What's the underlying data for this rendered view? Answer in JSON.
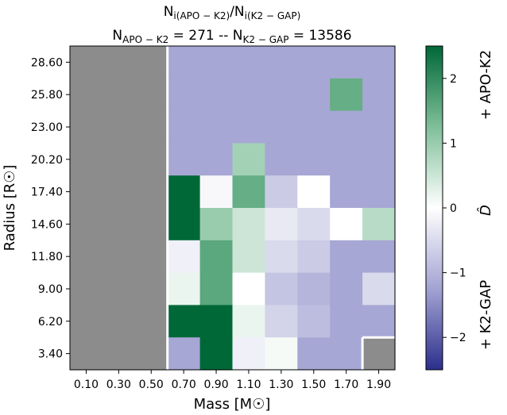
{
  "chart_data": {
    "type": "heatmap",
    "title_line1": "N_i(APO - K2)/N_i(K2 - GAP)",
    "title_line2": "N_APO - K2 = 271 -- N_K2 - GAP = 13586",
    "title": {
      "l1": [
        {
          "t": "N",
          "sub": false
        },
        {
          "t": "i(APO − K2)",
          "sub": true
        },
        {
          "t": "/N",
          "sub": false
        },
        {
          "t": "i(K2 − GAP)",
          "sub": true
        }
      ],
      "l2": [
        {
          "t": "N",
          "sub": false
        },
        {
          "t": "APO − K2",
          "sub": true
        },
        {
          "t": " = 271 -- N",
          "sub": false
        },
        {
          "t": "K2 − GAP",
          "sub": true
        },
        {
          "t": " = 13586",
          "sub": false
        }
      ]
    },
    "xlabel": "Mass [M☉]",
    "ylabel": "Radius [R☉]",
    "x_ticks": [
      "0.10",
      "0.30",
      "0.50",
      "0.70",
      "0.90",
      "1.10",
      "1.30",
      "1.50",
      "1.70",
      "1.90"
    ],
    "y_ticks": [
      "3.40",
      "6.20",
      "9.00",
      "11.80",
      "14.60",
      "17.40",
      "20.20",
      "23.00",
      "25.80",
      "28.60"
    ],
    "colorbar": {
      "label": "D̂",
      "ticks": [
        "−2",
        "−1",
        "0",
        "1",
        "2"
      ],
      "tick_values": [
        -2,
        -1,
        0,
        1,
        2
      ],
      "range": [
        -2.5,
        2.5
      ],
      "top_label": "+ APO-K2",
      "bottom_label": "+ K2-GAP",
      "colors": {
        "low": "#2c2f8c",
        "mid": "#ffffff",
        "high": "#006837"
      }
    },
    "nan_color": "#8c8c8c",
    "rows_top_to_bottom": [
      [
        null,
        null,
        null,
        -1.2,
        -1.2,
        -1.2,
        -1.2,
        -1.2,
        -1.2,
        -1.2
      ],
      [
        null,
        null,
        null,
        -1.2,
        -1.2,
        -1.2,
        -1.2,
        -1.2,
        1.5,
        -1.2
      ],
      [
        null,
        null,
        null,
        -1.2,
        -1.2,
        -1.2,
        -1.2,
        -1.2,
        -1.2,
        -1.2
      ],
      [
        null,
        null,
        null,
        -1.2,
        -1.2,
        0.9,
        -1.2,
        -1.2,
        -1.2,
        -1.2
      ],
      [
        null,
        null,
        null,
        2.5,
        -0.1,
        1.5,
        -0.7,
        0.0,
        -1.2,
        -1.2
      ],
      [
        null,
        null,
        null,
        2.5,
        1.0,
        0.5,
        -0.3,
        -0.5,
        0.0,
        0.7
      ],
      [
        null,
        null,
        null,
        -0.2,
        1.6,
        0.5,
        -0.5,
        -0.7,
        -1.2,
        -1.2
      ],
      [
        null,
        null,
        null,
        0.2,
        1.6,
        0.0,
        -0.8,
        -1.0,
        -1.2,
        -0.5
      ],
      [
        null,
        null,
        null,
        2.5,
        2.5,
        0.2,
        -0.6,
        -0.9,
        -1.2,
        -1.2
      ],
      [
        null,
        null,
        null,
        -1.2,
        2.5,
        -0.2,
        0.1,
        -1.2,
        -1.2,
        null
      ]
    ]
  }
}
